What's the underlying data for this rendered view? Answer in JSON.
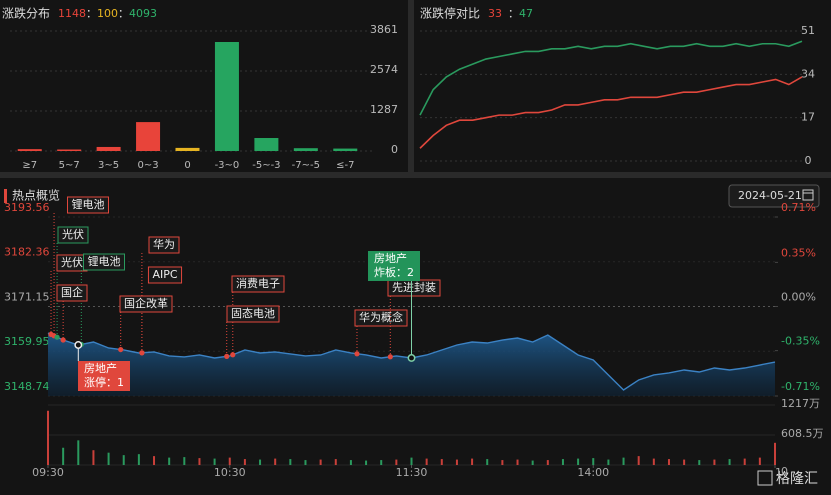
{
  "chart_data": [
    {
      "type": "bar",
      "title": "涨跌分布",
      "summary": [
        1148,
        100,
        4093
      ],
      "summary_colors": [
        "#e8443a",
        "#e6b422",
        "#2fb36b"
      ],
      "separator": "：",
      "categories": [
        "≥7",
        "5~7",
        "3~5",
        "0~3",
        "0",
        "-3~0",
        "-5~-3",
        "-7~-5",
        "≤-7"
      ],
      "values": [
        60,
        28,
        130,
        930,
        100,
        3507,
        418,
        90,
        78
      ],
      "colors": [
        "#e8443a",
        "#e8443a",
        "#e8443a",
        "#e8443a",
        "#e6b422",
        "#26a560",
        "#26a560",
        "#26a560",
        "#26a560"
      ],
      "ylim": [
        0,
        3861
      ],
      "yticks": [
        0,
        1287,
        2574,
        3861
      ],
      "grid": true
    },
    {
      "type": "line",
      "title": "涨跌停对比",
      "summary": [
        33,
        47
      ],
      "summary_colors": [
        "#e8443a",
        "#2fb36b"
      ],
      "series": [
        {
          "color": "#2a9a5e",
          "values": [
            18,
            28,
            33,
            36,
            38,
            40,
            41,
            42,
            43,
            43,
            44,
            44,
            45,
            44,
            45,
            45,
            46,
            45,
            44,
            45,
            45,
            46,
            45,
            45,
            46,
            45,
            46,
            46,
            45,
            47
          ]
        },
        {
          "color": "#e0473c",
          "values": [
            5,
            10,
            14,
            16,
            16,
            17,
            18,
            18,
            19,
            19,
            20,
            22,
            22,
            23,
            24,
            24,
            25,
            25,
            25,
            26,
            27,
            27,
            28,
            29,
            30,
            30,
            31,
            32,
            30,
            33
          ]
        }
      ],
      "ylim": [
        0,
        51
      ],
      "yticks": [
        0,
        17,
        34,
        51
      ],
      "grid": true
    },
    {
      "type": "area",
      "title": "热点概览",
      "date": "2024-05-21",
      "x": [
        0,
        5,
        10,
        15,
        20,
        25,
        30,
        35,
        40,
        45,
        50,
        55,
        60,
        65,
        70,
        75,
        80,
        85,
        90,
        95,
        100,
        105,
        110,
        115,
        120,
        125,
        130,
        135,
        140,
        145,
        150,
        155,
        160,
        165,
        170,
        175,
        180,
        185,
        190,
        195,
        200,
        205,
        210,
        215,
        220,
        225,
        230,
        235,
        240
      ],
      "values": [
        3164.52,
        3162.76,
        3161.51,
        3162.26,
        3160.76,
        3160.26,
        3159.51,
        3159.76,
        3158.76,
        3158.51,
        3159.01,
        3158.26,
        3158.76,
        3160.26,
        3159.51,
        3159.76,
        3159.26,
        3158.76,
        3159.01,
        3160.26,
        3159.51,
        3159.01,
        3158.26,
        3158.76,
        3158.26,
        3159.01,
        3160.26,
        3161.51,
        3162.26,
        3162.01,
        3162.76,
        3163.26,
        3162.26,
        3164.01,
        3161.51,
        3159.01,
        3157.75,
        3154.0,
        3150.24,
        3152.75,
        3154.0,
        3154.5,
        3155.25,
        3154.75,
        3155.75,
        3155.25,
        3155.75,
        3156.5,
        3157.25
      ],
      "color": "#3b82c4",
      "volume": [
        1100,
        350,
        500,
        300,
        250,
        200,
        220,
        180,
        150,
        160,
        140,
        130,
        150,
        120,
        110,
        130,
        120,
        100,
        110,
        120,
        100,
        90,
        100,
        110,
        150,
        130,
        120,
        110,
        130,
        120,
        100,
        110,
        90,
        100,
        120,
        130,
        140,
        110,
        150,
        180,
        130,
        120,
        110,
        100,
        110,
        120,
        130,
        150,
        450
      ],
      "xlim": [
        0,
        240
      ],
      "xticks": [
        {
          "value": 0,
          "label": "09:30"
        },
        {
          "value": 60,
          "label": "10:30"
        },
        {
          "value": 120,
          "label": "11:30"
        },
        {
          "value": 180,
          "label": "14:00"
        },
        {
          "value": 240,
          "label": "1"
        }
      ],
      "ylim": [
        3148.74,
        3193.56
      ],
      "yticks": [
        3148.74,
        3159.95,
        3171.15,
        3182.36,
        3193.56
      ],
      "y2lim": [
        -0.71,
        0.71
      ],
      "y2ticks": [
        {
          "value": -0.71,
          "label": "-0.71%"
        },
        {
          "value": -0.35,
          "label": "-0.35%"
        },
        {
          "value": 0,
          "label": "0.00%"
        },
        {
          "value": 0.35,
          "label": "0.35%"
        },
        {
          "value": 0.71,
          "label": "0.71%"
        }
      ],
      "vlim": [
        0,
        1217
      ],
      "vticks": [
        0,
        {
          "value": 608.5,
          "label": "608.5万"
        },
        {
          "value": 1217,
          "label": "1217万"
        }
      ],
      "events": [
        {
          "label": "锂电池",
          "t": 2,
          "color": "#e0473c"
        },
        {
          "label": "光伏",
          "t": 3,
          "color": "#2a9a5e"
        },
        {
          "label": "光伏",
          "t": 1,
          "color": "#e0473c"
        },
        {
          "label": "锂电池",
          "t": 11,
          "color": "#2a9a5e"
        },
        {
          "label": "国企",
          "t": 5,
          "color": "#e0473c"
        },
        {
          "label": "华为",
          "t": 31,
          "color": "#e0473c"
        },
        {
          "label": "AIPC",
          "t": 31,
          "color": "#e0473c"
        },
        {
          "label": "国企改革",
          "t": 24,
          "color": "#e0473c"
        },
        {
          "label": "消费电子",
          "t": 61,
          "color": "#e0473c"
        },
        {
          "label": "固态电池",
          "t": 59,
          "color": "#e0473c"
        },
        {
          "label": "华为概念",
          "t": 102,
          "color": "#e0473c"
        },
        {
          "label": "先进封装",
          "t": 113,
          "color": "#e0473c"
        }
      ],
      "callouts": [
        {
          "label": "房地产",
          "detail": "炸板：2",
          "t": 120,
          "color": "#23945a"
        },
        {
          "label": "房地产",
          "detail": "涨停：1",
          "t": 10,
          "color": "#e0473c"
        }
      ]
    }
  ],
  "brand": "格隆汇"
}
